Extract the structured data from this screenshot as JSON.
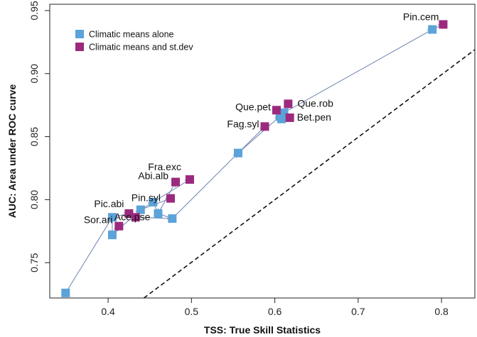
{
  "chart_data": {
    "type": "scatter",
    "title": "",
    "xlabel": "TSS: True Skill Statistics",
    "ylabel": "AUC: Area under ROC curve",
    "xlim": [
      0.33,
      0.84
    ],
    "ylim": [
      0.722,
      0.955
    ],
    "xticks": [
      0.4,
      0.5,
      0.6,
      0.7,
      0.8
    ],
    "xtick_labels": [
      "0.4",
      "0.5",
      "0.6",
      "0.7",
      "0.8"
    ],
    "yticks": [
      0.75,
      0.8,
      0.85,
      0.9,
      0.95
    ],
    "ytick_labels": [
      "0.75",
      "0.80",
      "0.85",
      "0.90",
      "0.95"
    ],
    "grid": false,
    "legend_position": "top-left",
    "reference_line": {
      "style": "dashed",
      "color": "#111111",
      "points": [
        [
          0.443,
          0.722
        ],
        [
          0.84,
          0.919
        ]
      ]
    },
    "arrow_color": "#7b8db5",
    "series": [
      {
        "name": "Climatic means alone",
        "color": "#5ba3d9"
      },
      {
        "name": "Climatic means and st.dev",
        "color": "#9b2a7e"
      }
    ],
    "species": [
      {
        "label": "Pin.cem",
        "alone": [
          0.789,
          0.935
        ],
        "with_sd": [
          0.802,
          0.939
        ]
      },
      {
        "label": "Que.rob",
        "alone": [
          0.611,
          0.869
        ],
        "with_sd": [
          0.616,
          0.876
        ]
      },
      {
        "label": "Que.pet",
        "alone": [
          0.606,
          0.866
        ],
        "with_sd": [
          0.602,
          0.871
        ]
      },
      {
        "label": "Bet.pen",
        "alone": [
          0.608,
          0.864
        ],
        "with_sd": [
          0.618,
          0.865
        ]
      },
      {
        "label": "Fag.syl",
        "alone": [
          0.556,
          0.837
        ],
        "with_sd": [
          0.588,
          0.858
        ]
      },
      {
        "label": "Fra.exc",
        "alone": [
          0.454,
          0.798
        ],
        "with_sd": [
          0.498,
          0.816
        ]
      },
      {
        "label": "Abi.alb",
        "alone": [
          0.46,
          0.789
        ],
        "with_sd": [
          0.481,
          0.814
        ]
      },
      {
        "label": "Pin.syl",
        "alone": [
          0.439,
          0.792
        ],
        "with_sd": [
          0.475,
          0.801
        ]
      },
      {
        "label": "Ace.pse",
        "alone": [
          0.477,
          0.785
        ],
        "with_sd": [
          0.433,
          0.786
        ]
      },
      {
        "label": "Pic.abi",
        "alone": [
          0.405,
          0.786
        ],
        "with_sd": [
          0.425,
          0.789
        ]
      },
      {
        "label": "Sor.ari",
        "alone": [
          0.405,
          0.772
        ],
        "with_sd": [
          0.413,
          0.779
        ]
      },
      {
        "label": "",
        "alone": [
          0.349,
          0.726
        ],
        "with_sd": null
      }
    ]
  }
}
